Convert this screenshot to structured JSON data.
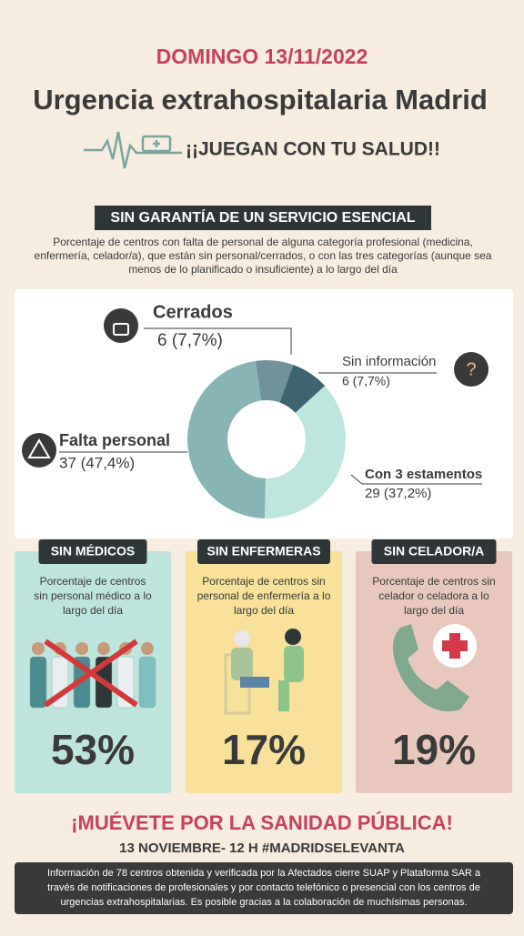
{
  "header": {
    "date": "DOMINGO 13/11/2022",
    "title": "Urgencia extrahospitalaria Madrid",
    "slogan": "¡¡JUEGAN CON TU SALUD!!"
  },
  "section": {
    "heading": "SIN GARANTÍA DE UN SERVICIO  ESENCIAL",
    "description": [
      "Porcentaje de centros con falta de personal de alguna categoría profesional (medicina,",
      "enfermería, celador/a), que están sin personal/cerrados, o con las tres categorías (aunque sea",
      "menos de lo planificado o insuficiente) a lo largo del día"
    ]
  },
  "chart_data": {
    "type": "donut",
    "categories": [
      "Cerrados",
      "Sin información",
      "Con 3 estamentos",
      "Falta personal"
    ],
    "values": [
      7.7,
      7.7,
      37.2,
      47.4
    ],
    "value_labels": [
      "6 (7,7%)",
      "6 (7,7%)",
      "29 (37,2%)",
      "37 (47,4%)"
    ],
    "colors": [
      "#6f929c",
      "#3e6572",
      "#bde6de",
      "#87b5b6"
    ]
  },
  "cards": [
    {
      "label": "SIN MÉDICOS",
      "text": [
        "Porcentaje de centros",
        "sin personal médico a lo",
        "largo del día"
      ],
      "percent": "53%"
    },
    {
      "label": "SIN ENFERMERAS",
      "text": [
        "Porcentaje de centros sin",
        "personal de enfermería a lo",
        "largo del día"
      ],
      "percent": "17%"
    },
    {
      "label": "SIN CELADOR/A",
      "text": [
        "Porcentaje de centros sin",
        "celador o celadora a lo",
        "largo del día"
      ],
      "percent": "19%"
    }
  ],
  "footer": {
    "call": "¡MUÉVETE POR LA SANIDAD PÚBLICA!",
    "event": "13 NOVIEMBRE- 12 H #MADRIDSELEVANTA",
    "info": [
      "Información de 78 centros obtenida y verificada por la Afectados cierre SUAP y Plataforma SAR a",
      "través de notificaciones de profesionales y por contacto telefónico o presencial con los centros de",
      "urgencias extrahospitalarias. Es posible gracias a la colaboración de muchísimas personas."
    ]
  }
}
